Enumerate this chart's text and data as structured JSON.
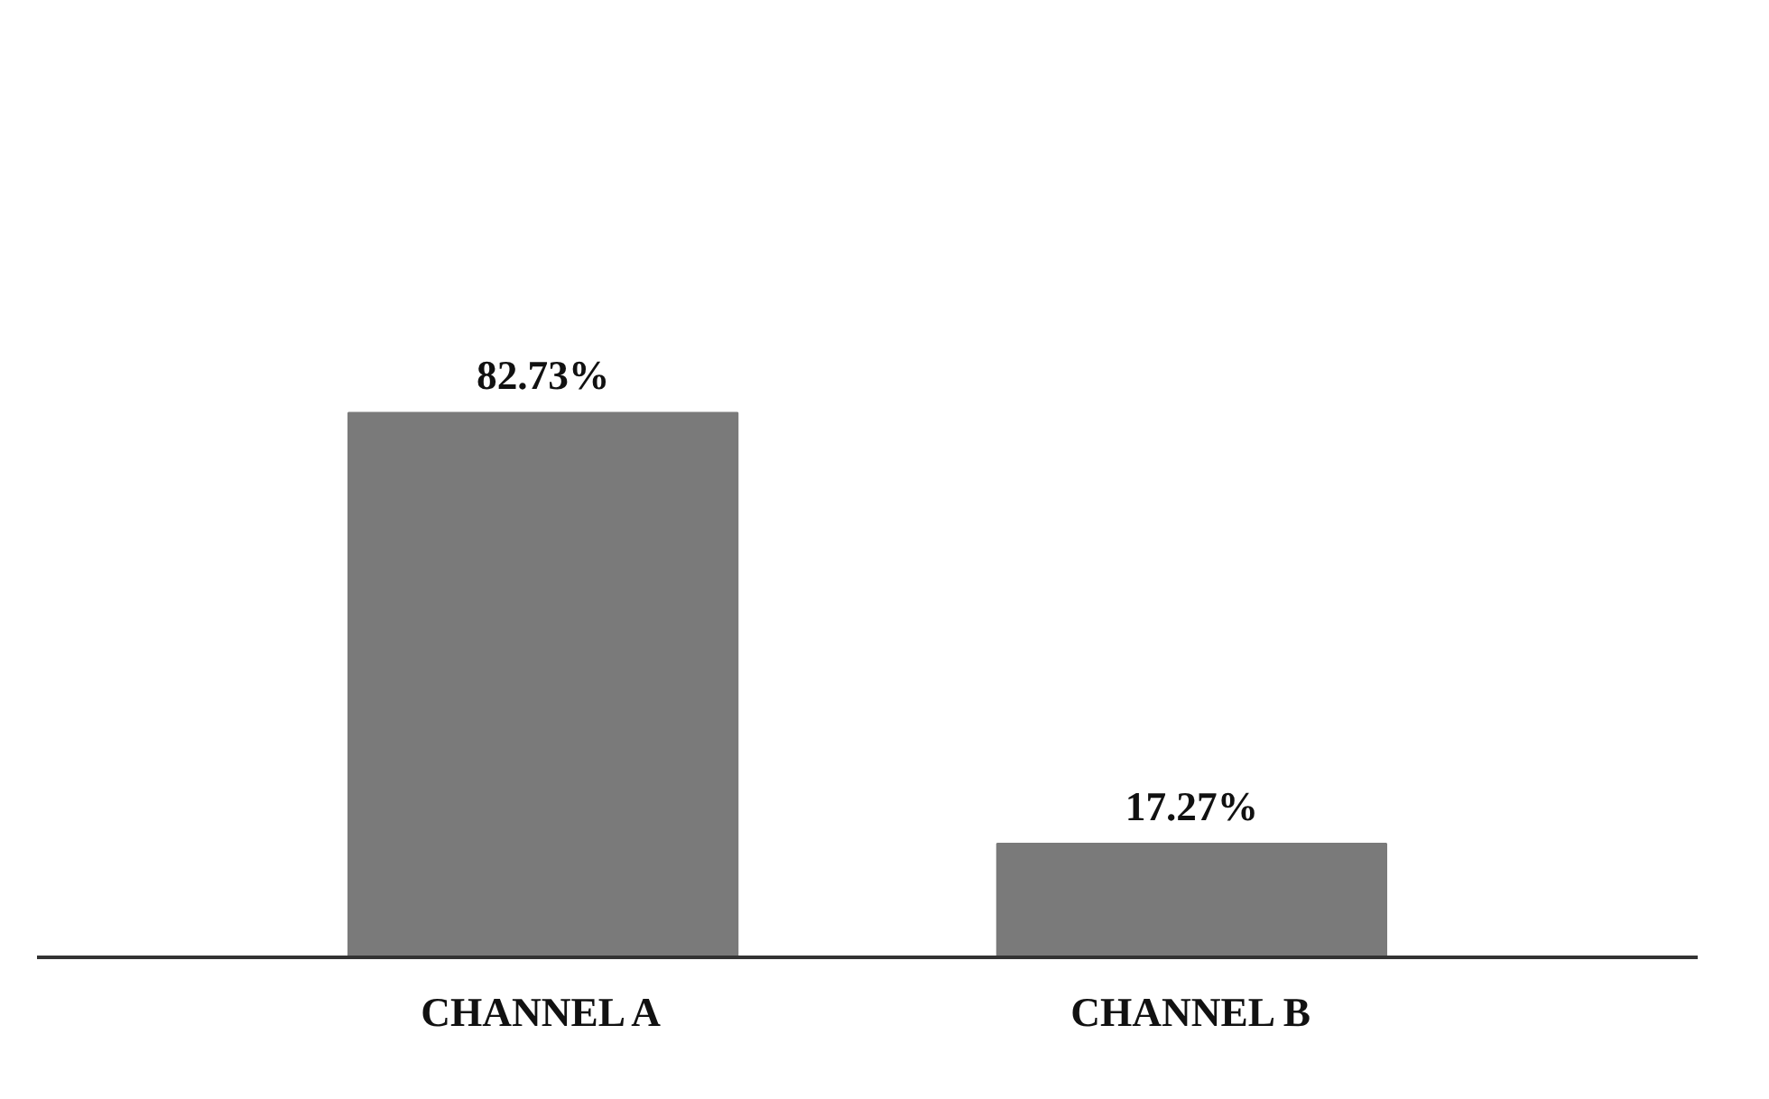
{
  "chart_data": {
    "type": "bar",
    "categories": [
      "CHANNEL A",
      "CHANNEL B"
    ],
    "values": [
      82.73,
      17.27
    ],
    "value_labels": [
      "82.73%",
      "17.27%"
    ],
    "color": "#7a7a7a"
  }
}
